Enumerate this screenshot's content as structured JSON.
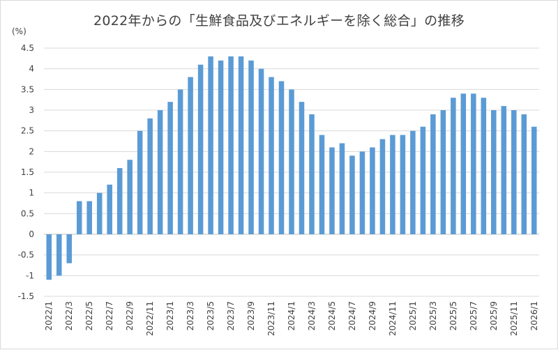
{
  "chart_data": {
    "type": "bar",
    "title": "2022年からの「生鮮食品及びエネルギーを除く総合」の推移",
    "ylabel": "(%)",
    "ylim": [
      -1.5,
      4.5
    ],
    "ytick_step": 0.5,
    "grid": true,
    "bar_color": "#5B9BD5",
    "categories": [
      "2022/1",
      "2022/2",
      "2022/3",
      "2022/4",
      "2022/5",
      "2022/6",
      "2022/7",
      "2022/8",
      "2022/9",
      "2022/10",
      "2022/11",
      "2022/12",
      "2023/1",
      "2023/2",
      "2023/3",
      "2023/4",
      "2023/5",
      "2023/6",
      "2023/7",
      "2023/8",
      "2023/9",
      "2023/10",
      "2023/11",
      "2023/12",
      "2024/1",
      "2024/2",
      "2024/3",
      "2024/4",
      "2024/5",
      "2024/6",
      "2024/7",
      "2024/8",
      "2024/9",
      "2024/10",
      "2024/11",
      "2024/12",
      "2025/1",
      "2025/2",
      "2025/3",
      "2025/4",
      "2025/5",
      "2025/6",
      "2025/7",
      "2025/8",
      "2025/9",
      "2025/10",
      "2025/11",
      "2025/12",
      "2026/1"
    ],
    "tick_labels": [
      "2022/1",
      "2022/3",
      "2022/5",
      "2022/7",
      "2022/9",
      "2022/11",
      "2023/1",
      "2023/3",
      "2023/5",
      "2023/7",
      "2023/9",
      "2023/11",
      "2024/1",
      "2024/3",
      "2024/5",
      "2024/7",
      "2024/9",
      "2024/11",
      "2025/1",
      "2025/3",
      "2025/5",
      "2025/7",
      "2025/9",
      "2025/11",
      "2026/1"
    ],
    "values": [
      -1.1,
      -1.0,
      -0.7,
      0.8,
      0.8,
      1.0,
      1.2,
      1.6,
      1.8,
      2.5,
      2.8,
      3.0,
      3.2,
      3.5,
      3.8,
      4.1,
      4.3,
      4.2,
      4.3,
      4.3,
      4.2,
      4.0,
      3.8,
      3.7,
      3.5,
      3.2,
      2.9,
      2.4,
      2.1,
      2.2,
      1.9,
      2.0,
      2.1,
      2.3,
      2.4,
      2.4,
      2.5,
      2.6,
      2.9,
      3.0,
      3.3,
      3.4,
      3.4,
      3.3,
      3.0,
      3.1,
      3.0,
      2.9,
      2.6
    ]
  }
}
